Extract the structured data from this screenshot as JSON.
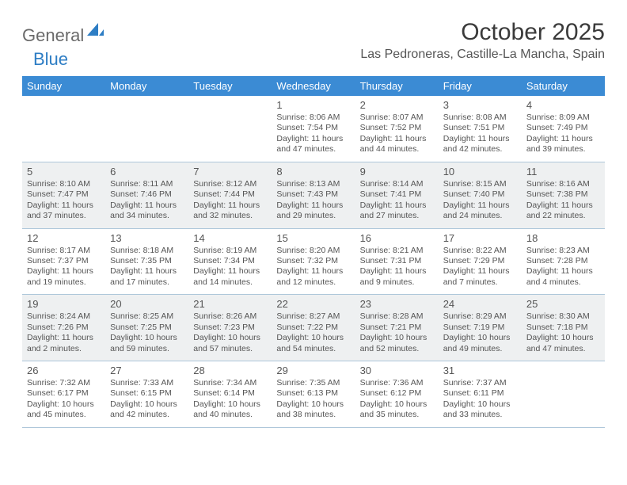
{
  "brand": {
    "part1": "General",
    "part2": "Blue"
  },
  "title": "October 2025",
  "location": "Las Pedroneras, Castille-La Mancha, Spain",
  "colors": {
    "header_bg": "#3b8bd4",
    "header_text": "#ffffff",
    "shaded_bg": "#eef0f1",
    "rule": "#aec7da",
    "text": "#555555"
  },
  "dayNames": [
    "Sunday",
    "Monday",
    "Tuesday",
    "Wednesday",
    "Thursday",
    "Friday",
    "Saturday"
  ],
  "weeks": [
    {
      "shaded": false,
      "days": [
        {
          "n": "",
          "sr": "",
          "ss": "",
          "dl": ""
        },
        {
          "n": "",
          "sr": "",
          "ss": "",
          "dl": ""
        },
        {
          "n": "",
          "sr": "",
          "ss": "",
          "dl": ""
        },
        {
          "n": "1",
          "sr": "Sunrise: 8:06 AM",
          "ss": "Sunset: 7:54 PM",
          "dl": "Daylight: 11 hours and 47 minutes."
        },
        {
          "n": "2",
          "sr": "Sunrise: 8:07 AM",
          "ss": "Sunset: 7:52 PM",
          "dl": "Daylight: 11 hours and 44 minutes."
        },
        {
          "n": "3",
          "sr": "Sunrise: 8:08 AM",
          "ss": "Sunset: 7:51 PM",
          "dl": "Daylight: 11 hours and 42 minutes."
        },
        {
          "n": "4",
          "sr": "Sunrise: 8:09 AM",
          "ss": "Sunset: 7:49 PM",
          "dl": "Daylight: 11 hours and 39 minutes."
        }
      ]
    },
    {
      "shaded": true,
      "days": [
        {
          "n": "5",
          "sr": "Sunrise: 8:10 AM",
          "ss": "Sunset: 7:47 PM",
          "dl": "Daylight: 11 hours and 37 minutes."
        },
        {
          "n": "6",
          "sr": "Sunrise: 8:11 AM",
          "ss": "Sunset: 7:46 PM",
          "dl": "Daylight: 11 hours and 34 minutes."
        },
        {
          "n": "7",
          "sr": "Sunrise: 8:12 AM",
          "ss": "Sunset: 7:44 PM",
          "dl": "Daylight: 11 hours and 32 minutes."
        },
        {
          "n": "8",
          "sr": "Sunrise: 8:13 AM",
          "ss": "Sunset: 7:43 PM",
          "dl": "Daylight: 11 hours and 29 minutes."
        },
        {
          "n": "9",
          "sr": "Sunrise: 8:14 AM",
          "ss": "Sunset: 7:41 PM",
          "dl": "Daylight: 11 hours and 27 minutes."
        },
        {
          "n": "10",
          "sr": "Sunrise: 8:15 AM",
          "ss": "Sunset: 7:40 PM",
          "dl": "Daylight: 11 hours and 24 minutes."
        },
        {
          "n": "11",
          "sr": "Sunrise: 8:16 AM",
          "ss": "Sunset: 7:38 PM",
          "dl": "Daylight: 11 hours and 22 minutes."
        }
      ]
    },
    {
      "shaded": false,
      "days": [
        {
          "n": "12",
          "sr": "Sunrise: 8:17 AM",
          "ss": "Sunset: 7:37 PM",
          "dl": "Daylight: 11 hours and 19 minutes."
        },
        {
          "n": "13",
          "sr": "Sunrise: 8:18 AM",
          "ss": "Sunset: 7:35 PM",
          "dl": "Daylight: 11 hours and 17 minutes."
        },
        {
          "n": "14",
          "sr": "Sunrise: 8:19 AM",
          "ss": "Sunset: 7:34 PM",
          "dl": "Daylight: 11 hours and 14 minutes."
        },
        {
          "n": "15",
          "sr": "Sunrise: 8:20 AM",
          "ss": "Sunset: 7:32 PM",
          "dl": "Daylight: 11 hours and 12 minutes."
        },
        {
          "n": "16",
          "sr": "Sunrise: 8:21 AM",
          "ss": "Sunset: 7:31 PM",
          "dl": "Daylight: 11 hours and 9 minutes."
        },
        {
          "n": "17",
          "sr": "Sunrise: 8:22 AM",
          "ss": "Sunset: 7:29 PM",
          "dl": "Daylight: 11 hours and 7 minutes."
        },
        {
          "n": "18",
          "sr": "Sunrise: 8:23 AM",
          "ss": "Sunset: 7:28 PM",
          "dl": "Daylight: 11 hours and 4 minutes."
        }
      ]
    },
    {
      "shaded": true,
      "days": [
        {
          "n": "19",
          "sr": "Sunrise: 8:24 AM",
          "ss": "Sunset: 7:26 PM",
          "dl": "Daylight: 11 hours and 2 minutes."
        },
        {
          "n": "20",
          "sr": "Sunrise: 8:25 AM",
          "ss": "Sunset: 7:25 PM",
          "dl": "Daylight: 10 hours and 59 minutes."
        },
        {
          "n": "21",
          "sr": "Sunrise: 8:26 AM",
          "ss": "Sunset: 7:23 PM",
          "dl": "Daylight: 10 hours and 57 minutes."
        },
        {
          "n": "22",
          "sr": "Sunrise: 8:27 AM",
          "ss": "Sunset: 7:22 PM",
          "dl": "Daylight: 10 hours and 54 minutes."
        },
        {
          "n": "23",
          "sr": "Sunrise: 8:28 AM",
          "ss": "Sunset: 7:21 PM",
          "dl": "Daylight: 10 hours and 52 minutes."
        },
        {
          "n": "24",
          "sr": "Sunrise: 8:29 AM",
          "ss": "Sunset: 7:19 PM",
          "dl": "Daylight: 10 hours and 49 minutes."
        },
        {
          "n": "25",
          "sr": "Sunrise: 8:30 AM",
          "ss": "Sunset: 7:18 PM",
          "dl": "Daylight: 10 hours and 47 minutes."
        }
      ]
    },
    {
      "shaded": false,
      "days": [
        {
          "n": "26",
          "sr": "Sunrise: 7:32 AM",
          "ss": "Sunset: 6:17 PM",
          "dl": "Daylight: 10 hours and 45 minutes."
        },
        {
          "n": "27",
          "sr": "Sunrise: 7:33 AM",
          "ss": "Sunset: 6:15 PM",
          "dl": "Daylight: 10 hours and 42 minutes."
        },
        {
          "n": "28",
          "sr": "Sunrise: 7:34 AM",
          "ss": "Sunset: 6:14 PM",
          "dl": "Daylight: 10 hours and 40 minutes."
        },
        {
          "n": "29",
          "sr": "Sunrise: 7:35 AM",
          "ss": "Sunset: 6:13 PM",
          "dl": "Daylight: 10 hours and 38 minutes."
        },
        {
          "n": "30",
          "sr": "Sunrise: 7:36 AM",
          "ss": "Sunset: 6:12 PM",
          "dl": "Daylight: 10 hours and 35 minutes."
        },
        {
          "n": "31",
          "sr": "Sunrise: 7:37 AM",
          "ss": "Sunset: 6:11 PM",
          "dl": "Daylight: 10 hours and 33 minutes."
        },
        {
          "n": "",
          "sr": "",
          "ss": "",
          "dl": ""
        }
      ]
    }
  ]
}
